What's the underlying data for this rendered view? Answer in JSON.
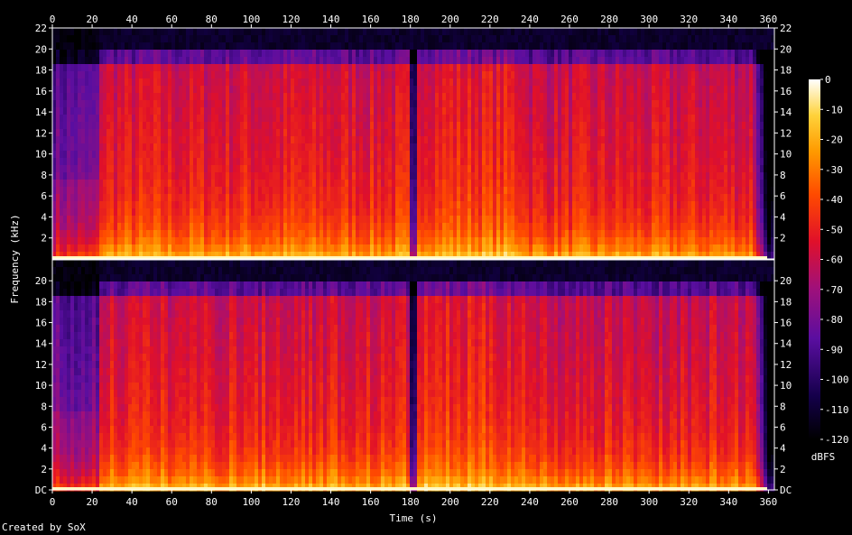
{
  "chart_data": {
    "type": "heatmap",
    "title": "",
    "xlabel": "Time (s)",
    "ylabel": "Frequency (kHz)",
    "xlim": [
      0,
      363
    ],
    "ylim": [
      0,
      22
    ],
    "x_ticks": [
      "0",
      "20",
      "40",
      "60",
      "80",
      "100",
      "120",
      "140",
      "160",
      "180",
      "200",
      "220",
      "240",
      "260",
      "280",
      "300",
      "320",
      "340",
      "360"
    ],
    "y_ticks_top": [
      "2",
      "4",
      "6",
      "8",
      "10",
      "12",
      "14",
      "16",
      "18",
      "20",
      "22"
    ],
    "y_ticks_bottom": [
      "DC",
      "2",
      "4",
      "6",
      "8",
      "10",
      "12",
      "14",
      "16",
      "18",
      "20"
    ],
    "channels": [
      "channel-1",
      "channel-2"
    ],
    "colorbar": {
      "label": "dBFS",
      "ticks": [
        "0",
        "-10",
        "-20",
        "-30",
        "-40",
        "-50",
        "-60",
        "-70",
        "-80",
        "-90",
        "-100",
        "-110",
        "-120"
      ],
      "range": [
        -120,
        0
      ]
    },
    "notes": {
      "quiet_intro_until_s": 22,
      "gap_near_s": 180,
      "high_energy_section_s": [
        180,
        236
      ],
      "fade_out_from_s": 352,
      "lowpass_cutoff_khz": 20
    }
  },
  "footer": "Created by SoX",
  "colors": {
    "background": "#000000",
    "axis": "#ffffff"
  }
}
